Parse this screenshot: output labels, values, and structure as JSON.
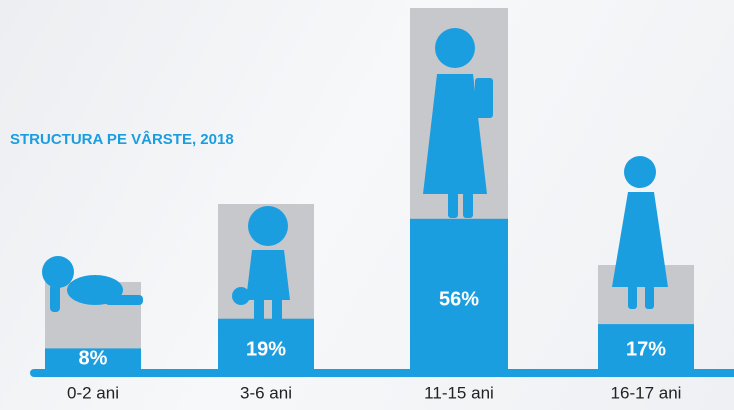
{
  "chart_data": {
    "type": "bar",
    "title": "STRUCTURA PE VÂRSTE, 2018",
    "categories": [
      "0-2 ani",
      "3-6 ani",
      "11-15 ani",
      "16-17 ani"
    ],
    "values": [
      8,
      19,
      56,
      17
    ],
    "value_labels": [
      "8%",
      "19%",
      "56%",
      "17%"
    ],
    "color": "#1b9ee0"
  }
}
